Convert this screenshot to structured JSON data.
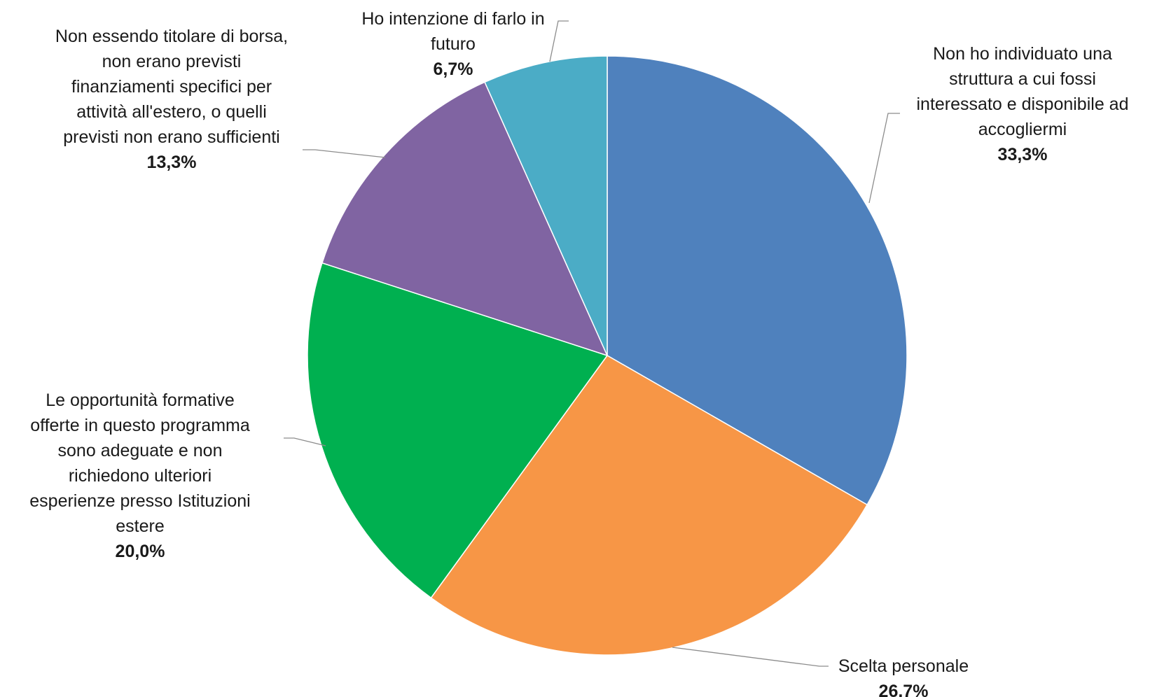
{
  "chart_data": {
    "type": "pie",
    "title": "",
    "slices": [
      {
        "label_lines": [
          "Non ho individuato una",
          "struttura a cui fossi",
          "interessato e disponibile ad",
          "accogliermi"
        ],
        "value": 33.3,
        "value_label": "33,3%",
        "color": "#4F81BD"
      },
      {
        "label_lines": [
          "Scelta personale"
        ],
        "value": 26.7,
        "value_label": "26,7%",
        "color": "#F79646"
      },
      {
        "label_lines": [
          "Le opportunità formative",
          "offerte in questo programma",
          "sono adeguate e non",
          "richiedono ulteriori",
          "esperienze presso Istituzioni",
          "estere"
        ],
        "value": 20.0,
        "value_label": "20,0%",
        "color": "#00B050"
      },
      {
        "label_lines": [
          "Non essendo titolare di borsa,",
          "non erano previsti",
          "finanziamenti specifici per",
          "attività all'estero, o quelli",
          "previsti non erano sufficienti"
        ],
        "value": 13.3,
        "value_label": "13,3%",
        "color": "#8064A2"
      },
      {
        "label_lines": [
          "Ho intenzione di farlo in",
          "futuro"
        ],
        "value": 6.7,
        "value_label": "6,7%",
        "color": "#4BACC6"
      }
    ]
  }
}
